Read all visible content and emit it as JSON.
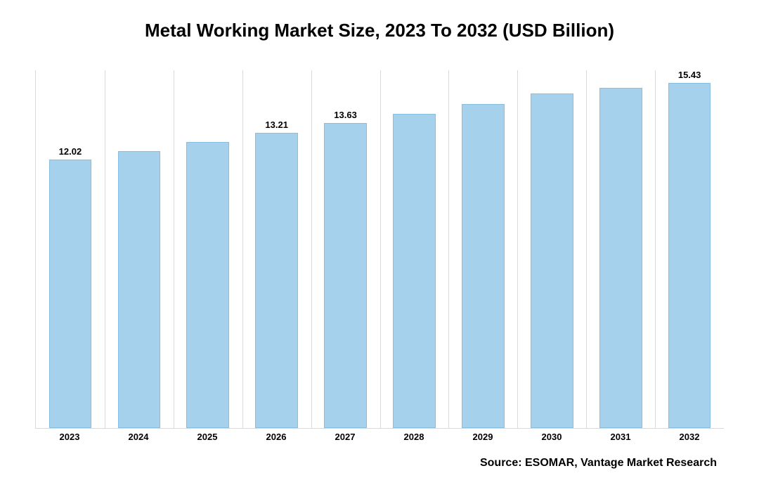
{
  "chart": {
    "type": "bar",
    "title": "Metal Working Market Size, 2023 To 2032 (USD Billion)",
    "title_fontsize": 26,
    "title_color": "#000000",
    "background_color": "#ffffff",
    "plot_border_color": "#d9d9d9",
    "grid_color": "#d9d9d9",
    "categories": [
      "2023",
      "2024",
      "2025",
      "2026",
      "2027",
      "2028",
      "2029",
      "2030",
      "2031",
      "2032"
    ],
    "values": [
      12.02,
      12.4,
      12.8,
      13.21,
      13.63,
      14.06,
      14.5,
      14.95,
      15.2,
      15.43
    ],
    "show_label": [
      true,
      false,
      false,
      true,
      true,
      false,
      false,
      false,
      false,
      true
    ],
    "bar_color": "#a6d1ed",
    "bar_border_color": "#88bfe0",
    "bar_width_pct": 62,
    "ylim": [
      0,
      16
    ],
    "value_label_fontsize": 13,
    "value_label_color": "#000000",
    "xaxis_fontsize": 13,
    "xaxis_color": "#000000",
    "source_text": "Source: ESOMAR, Vantage Market Research",
    "source_fontsize": 16,
    "source_color": "#000000"
  }
}
